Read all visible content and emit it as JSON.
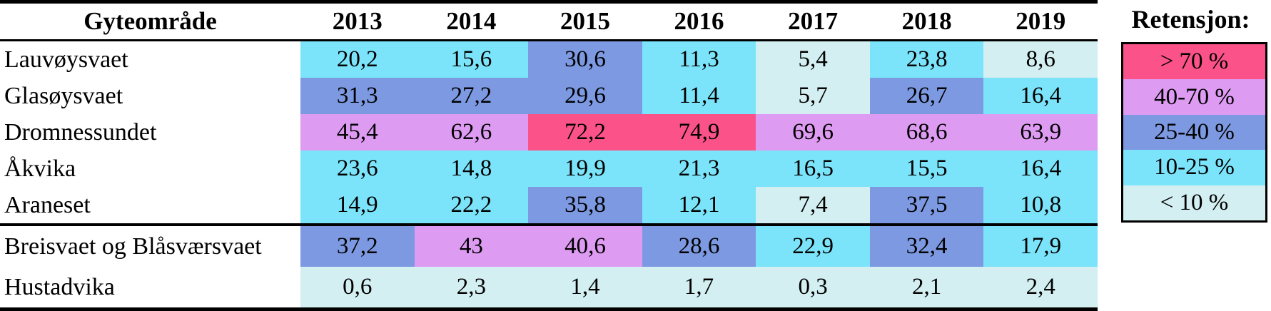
{
  "colors": {
    "gt70": "#FB5389",
    "p40_70": "#DE9BF2",
    "p25_40": "#7C99E1",
    "p10_25": "#7CE4FA",
    "lt10": "#D4EFF1",
    "grid": "#000000",
    "text": "#000000",
    "background": "#FFFFFF"
  },
  "chart_data": {
    "type": "heatmap",
    "row_header_label": "Gyteområde",
    "columns": [
      "2013",
      "2014",
      "2015",
      "2016",
      "2017",
      "2018",
      "2019"
    ],
    "rows": [
      "Lauvøysvaet",
      "Glasøysvaet",
      "Dromnessundet",
      "Åkvika",
      "Araneset",
      "Breisvaet og Blåsværsvaet",
      "Hustadvika"
    ],
    "values": [
      [
        20.2,
        15.6,
        30.6,
        11.3,
        5.4,
        23.8,
        8.6
      ],
      [
        31.3,
        27.2,
        29.6,
        11.4,
        5.7,
        26.7,
        16.4
      ],
      [
        45.4,
        62.6,
        72.2,
        74.9,
        69.6,
        68.6,
        63.9
      ],
      [
        23.6,
        14.8,
        19.9,
        21.3,
        16.5,
        15.5,
        16.4
      ],
      [
        14.9,
        22.2,
        35.8,
        12.1,
        7.4,
        37.5,
        10.8
      ],
      [
        37.2,
        43,
        40.6,
        28.6,
        22.9,
        32.4,
        17.9
      ],
      [
        0.6,
        2.3,
        1.4,
        1.7,
        0.3,
        2.1,
        2.4
      ]
    ],
    "value_decimal_separator": ",",
    "group_separator_after_row_index": 4,
    "legend": {
      "title": "Retensjon:",
      "position": "right",
      "items": [
        {
          "label": "> 70 %",
          "level": "gt70",
          "min": 70
        },
        {
          "label": "40-70 %",
          "level": "p40_70",
          "min": 40
        },
        {
          "label": "25-40 %",
          "level": "p25_40",
          "min": 25
        },
        {
          "label": "10-25 %",
          "level": "p10_25",
          "min": 10
        },
        {
          "label": "< 10 %",
          "level": "lt10",
          "min": 0
        }
      ]
    }
  }
}
